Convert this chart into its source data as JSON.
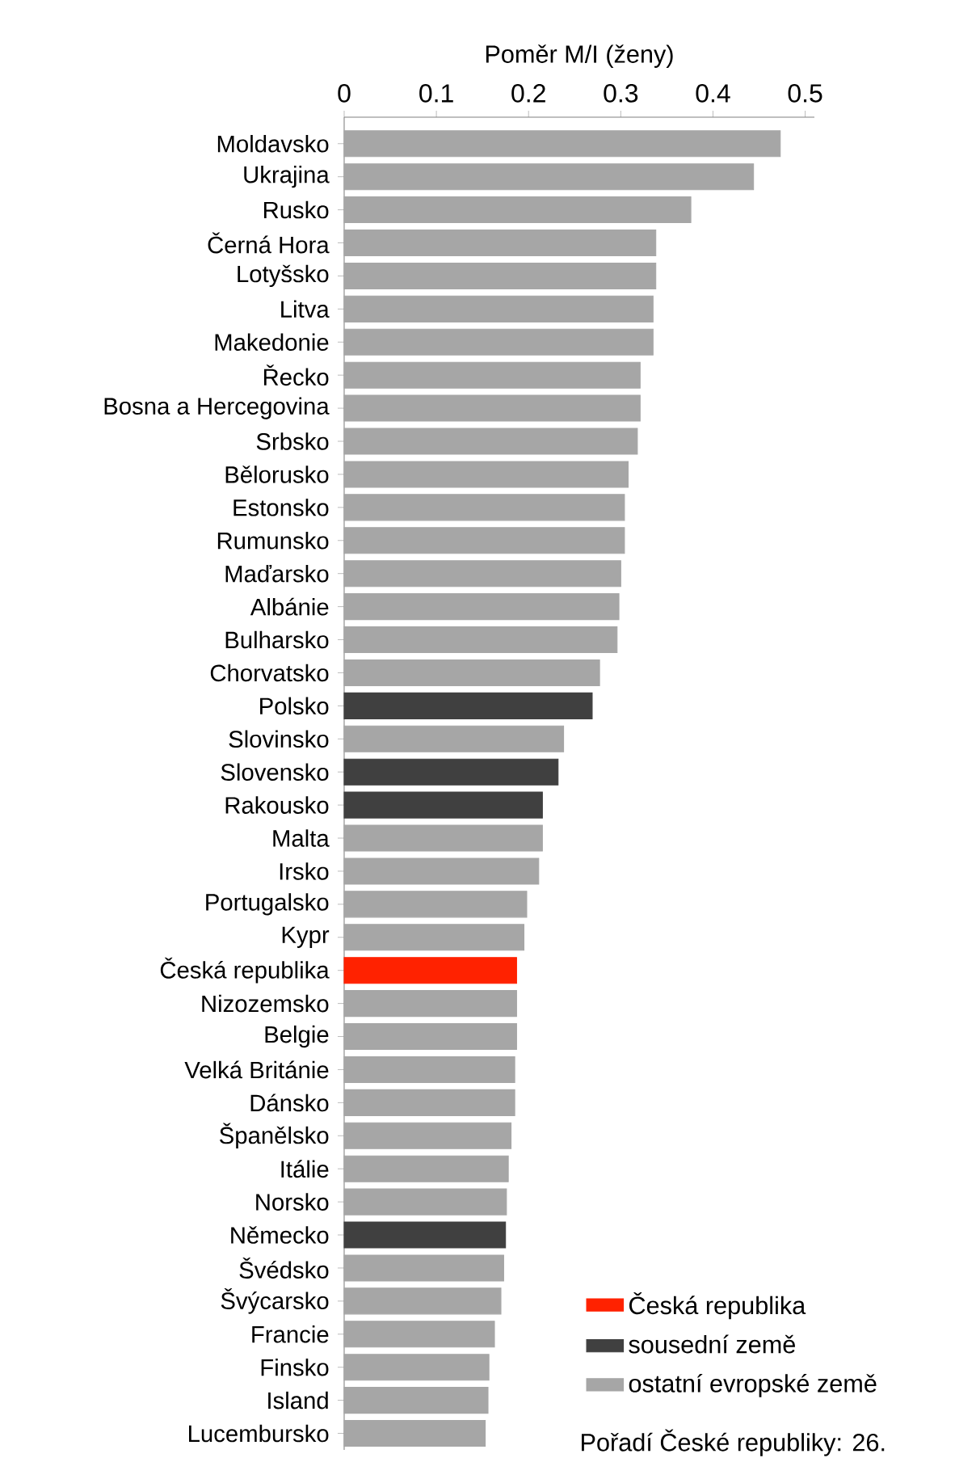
{
  "chart_data": {
    "type": "bar",
    "orientation": "horizontal",
    "xlabel": "Poměr M/I (ženy)",
    "categories": [
      "Moldavsko",
      "Ukrajina",
      "Rusko",
      "Černá Hora",
      "Lotyšsko",
      "Litva",
      "Makedonie",
      "Řecko",
      "Bosna a Hercegovina",
      "Srbsko",
      "Bělorusko",
      "Estonsko",
      "Rumunsko",
      "Maďarsko",
      "Albánie",
      "Bulharsko",
      "Chorvatsko",
      "Polsko",
      "Slovinsko",
      "Slovensko",
      "Rakousko",
      "Malta",
      "Irsko",
      "Portugalsko",
      "Kypr",
      "Česká republika",
      "Nizozemsko",
      "Belgie",
      "Velká Británie",
      "Dánsko",
      "Španělsko",
      "Itálie",
      "Norsko",
      "Německo",
      "Švédsko",
      "Švýcarsko",
      "Francie",
      "Finsko",
      "Island",
      "Lucembursko"
    ],
    "series": [
      {
        "name": "Česká republika",
        "color": "#ff2200",
        "values": [
          null,
          null,
          null,
          null,
          null,
          null,
          null,
          null,
          null,
          null,
          null,
          null,
          null,
          null,
          null,
          null,
          null,
          null,
          null,
          null,
          null,
          null,
          null,
          null,
          null,
          0.187,
          null,
          null,
          null,
          null,
          null,
          null,
          null,
          null,
          null,
          null,
          null,
          null,
          null,
          null
        ]
      },
      {
        "name": "sousední země",
        "color": "#404040",
        "values": [
          null,
          null,
          null,
          null,
          null,
          null,
          null,
          null,
          null,
          null,
          null,
          null,
          null,
          null,
          null,
          null,
          null,
          0.269,
          null,
          0.232,
          0.215,
          null,
          null,
          null,
          null,
          null,
          null,
          null,
          null,
          null,
          null,
          null,
          null,
          0.175,
          null,
          null,
          null,
          null,
          null,
          null
        ]
      },
      {
        "name": "ostatní evropské země",
        "color": "#a6a6a6",
        "values": [
          0.473,
          0.444,
          0.376,
          0.338,
          0.338,
          0.335,
          0.335,
          0.321,
          0.321,
          0.318,
          0.308,
          0.304,
          0.304,
          0.3,
          0.298,
          0.296,
          0.277,
          null,
          0.238,
          null,
          null,
          0.215,
          0.211,
          0.198,
          0.195,
          null,
          0.187,
          0.187,
          0.185,
          0.185,
          0.181,
          0.178,
          0.176,
          null,
          0.173,
          0.17,
          0.163,
          0.157,
          0.156,
          0.153
        ]
      }
    ],
    "xlim": [
      0,
      0.51
    ],
    "xticks": [
      0,
      0.1,
      0.2,
      0.3,
      0.4,
      0.5
    ],
    "grid": false,
    "legend": "bottom right",
    "annotations": [
      "Pořadí České republiky: 26."
    ]
  }
}
